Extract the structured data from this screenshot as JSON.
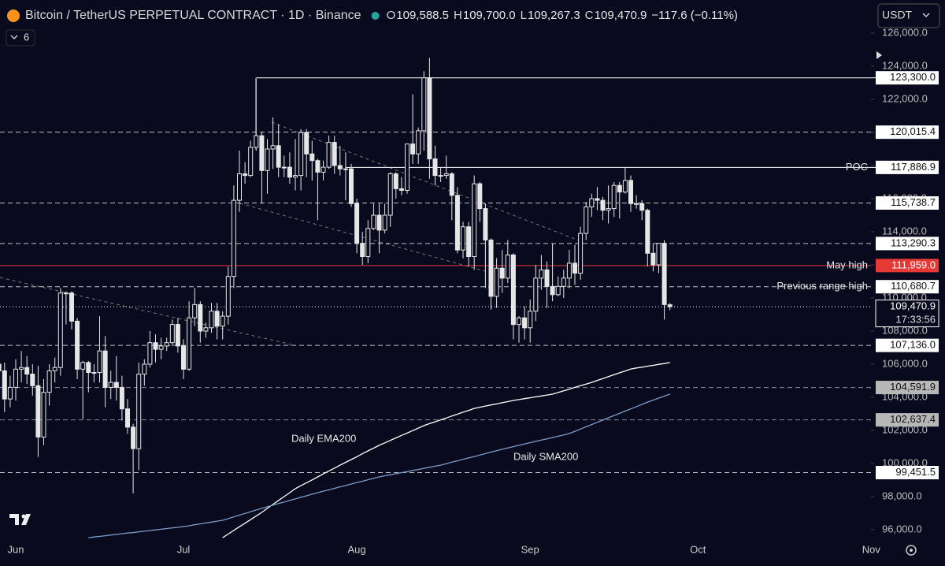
{
  "header": {
    "title": "Bitcoin / TetherUS PERPETUAL CONTRACT · 1D · Binance",
    "ohlc": [
      {
        "key": "O",
        "value": "109,588.5"
      },
      {
        "key": "H",
        "value": "109,700.0"
      },
      {
        "key": "L",
        "value": "109,267.3"
      },
      {
        "key": "C",
        "value": "109,470.9"
      }
    ],
    "change": "−117.6 (−0.11%)",
    "indicators": "6",
    "currency": "USDT"
  },
  "chart_data": {
    "type": "candlestick",
    "categories": [
      null,
      null,
      null,
      "Jun",
      null,
      null,
      null,
      null,
      null,
      null,
      null,
      null,
      null,
      null,
      null,
      null,
      null,
      null,
      null,
      null,
      null,
      null,
      null,
      null,
      null,
      null,
      null,
      null,
      null,
      null,
      null,
      null,
      null,
      "Jul",
      null,
      null,
      null,
      null,
      null,
      null,
      null,
      null,
      null,
      null,
      null,
      null,
      null,
      null,
      null,
      null,
      null,
      null,
      null,
      null,
      null,
      null,
      null,
      null,
      null,
      null,
      null,
      null,
      null,
      null,
      "Aug",
      null,
      null,
      null,
      null,
      null,
      null,
      null,
      null,
      null,
      null,
      null,
      null,
      null,
      null,
      null,
      null,
      null,
      null,
      null,
      null,
      null,
      null,
      null,
      null,
      null,
      null,
      null,
      null,
      null,
      null,
      "Sep",
      null,
      null,
      null,
      null,
      null,
      null,
      null,
      null,
      null,
      null,
      null,
      null,
      null,
      null,
      null,
      null,
      null,
      null,
      null,
      null,
      null,
      null,
      null,
      null,
      null,
      null,
      null,
      null,
      null,
      "Oct",
      null,
      null,
      null,
      null,
      null,
      null,
      null,
      null,
      null,
      null,
      null,
      null,
      null,
      null,
      null,
      null,
      null,
      null,
      null,
      null,
      null,
      null,
      null,
      null,
      null,
      null,
      null,
      null,
      null,
      null,
      "Nov"
    ],
    "open": [
      106000,
      105600,
      103900,
      104600,
      105700,
      105800,
      105400,
      104700,
      101600,
      104300,
      105600,
      105800,
      110300,
      110300,
      108600,
      105700,
      106100,
      105500,
      105500,
      106800,
      104600,
      104900,
      104600,
      103300,
      102200,
      100900,
      105400,
      106000,
      107300,
      106900,
      107100,
      107300,
      108400,
      107100,
      105700,
      108800,
      109600,
      108000,
      108200,
      109200,
      108300,
      108900,
      111300,
      115900,
      117500,
      117400,
      119100,
      119800,
      117700,
      119000,
      119200,
      117900,
      117900,
      117300,
      117400,
      120000,
      118700,
      118300,
      117600,
      117900,
      119400,
      118000,
      117800,
      117800,
      115700,
      113300,
      112500,
      114200,
      115000,
      114100,
      115000,
      117500,
      116600,
      116500,
      119300,
      118700,
      120100,
      123300,
      118400,
      117400,
      117400,
      117500,
      116200,
      112900,
      114300,
      112500,
      116900,
      115400,
      113500,
      110100,
      111800,
      111200,
      112600,
      108400,
      108800,
      108200,
      109200,
      111200,
      111700,
      110700,
      110200,
      110700,
      111200,
      112100,
      111500,
      113900,
      115500,
      116000,
      115900,
      115300,
      115400,
      116800,
      116400,
      117100,
      115700,
      115700,
      115300,
      112700,
      112000,
      113300,
      109588.5,
      null,
      null,
      null,
      null,
      null,
      null,
      null,
      null,
      null,
      null,
      null,
      null,
      null,
      null,
      null,
      null,
      null,
      null,
      null,
      null,
      null,
      null,
      null,
      null,
      null,
      null,
      null,
      null,
      null,
      null,
      null,
      null,
      null,
      null,
      null,
      null
    ],
    "high": [
      106800,
      106100,
      105300,
      106300,
      106800,
      106500,
      106000,
      105900,
      105100,
      106000,
      106400,
      110600,
      110400,
      110400,
      108800,
      106200,
      106200,
      106000,
      108900,
      107700,
      105600,
      106500,
      105300,
      103900,
      102400,
      106100,
      106300,
      108000,
      107800,
      107600,
      107600,
      108700,
      108800,
      107500,
      109800,
      110600,
      109800,
      108500,
      109700,
      109700,
      109200,
      111900,
      116800,
      118900,
      118200,
      119500,
      123200,
      120000,
      119600,
      120900,
      120500,
      118600,
      118800,
      119600,
      120200,
      120200,
      119500,
      118400,
      118300,
      119800,
      119800,
      119200,
      118800,
      118100,
      116000,
      114000,
      114700,
      115700,
      115700,
      115700,
      117600,
      117600,
      117300,
      119300,
      122300,
      120300,
      123700,
      124500,
      119200,
      117900,
      118600,
      117600,
      116700,
      114600,
      114600,
      117400,
      117000,
      115700,
      113600,
      112400,
      112900,
      113500,
      112700,
      108900,
      109500,
      109900,
      112000,
      112600,
      112200,
      113300,
      111300,
      111700,
      112900,
      113200,
      114300,
      115800,
      116300,
      116700,
      116100,
      116800,
      117000,
      117000,
      117900,
      117400,
      116200,
      115900,
      115400,
      113300,
      113300,
      113500,
      109700,
      null,
      null,
      null,
      null,
      null,
      null,
      null,
      null,
      null,
      null,
      null,
      null,
      null,
      null,
      null,
      null,
      null,
      null,
      null,
      null,
      null,
      null,
      null,
      null,
      null,
      null,
      null,
      null,
      null,
      null,
      null,
      null,
      null,
      null,
      null,
      null
    ],
    "low": [
      104900,
      103100,
      103400,
      103800,
      104900,
      104800,
      104100,
      100400,
      101100,
      103500,
      104900,
      105300,
      108400,
      108100,
      105100,
      102700,
      104300,
      104900,
      104900,
      103400,
      103900,
      103800,
      102600,
      101800,
      98200,
      99600,
      104700,
      105800,
      106100,
      106300,
      106800,
      107100,
      106700,
      105100,
      105600,
      108300,
      107300,
      107600,
      107900,
      107500,
      107500,
      108400,
      110600,
      115200,
      116900,
      117300,
      118900,
      115700,
      116300,
      117800,
      117300,
      117300,
      116900,
      116500,
      116500,
      117300,
      117100,
      114700,
      117100,
      117800,
      117500,
      117400,
      115900,
      115500,
      112700,
      112000,
      112100,
      114100,
      112700,
      113900,
      114300,
      116000,
      116200,
      116300,
      118100,
      118100,
      118900,
      117200,
      116800,
      117000,
      117200,
      114700,
      112700,
      112400,
      111900,
      111700,
      114600,
      110600,
      109300,
      109400,
      110300,
      110900,
      107500,
      107300,
      107500,
      107300,
      108600,
      110500,
      109400,
      109800,
      110100,
      110000,
      110600,
      110800,
      111100,
      113500,
      114900,
      115300,
      114700,
      114500,
      114900,
      114800,
      116300,
      115200,
      115400,
      114700,
      111900,
      111600,
      111500,
      108700,
      109267.3,
      null,
      null,
      null,
      null,
      null,
      null,
      null,
      null,
      null,
      null,
      null,
      null,
      null,
      null,
      null,
      null,
      null,
      null,
      null,
      null,
      null,
      null,
      null,
      null,
      null,
      null,
      null,
      null,
      null,
      null,
      null,
      null,
      null,
      null,
      null,
      null
    ],
    "close": [
      105600,
      103900,
      104600,
      105700,
      105800,
      105400,
      104700,
      101600,
      104300,
      105600,
      105800,
      110300,
      110300,
      108600,
      105700,
      106100,
      105500,
      105500,
      106800,
      104600,
      104900,
      104600,
      103300,
      102200,
      100900,
      105400,
      106000,
      107300,
      106900,
      107100,
      107300,
      108400,
      107100,
      105700,
      108800,
      109600,
      108000,
      108200,
      109200,
      108300,
      108900,
      111300,
      115900,
      117500,
      117400,
      119100,
      119800,
      117700,
      119000,
      119200,
      117900,
      117900,
      117300,
      117400,
      120000,
      118700,
      118300,
      117600,
      117900,
      119400,
      118000,
      117800,
      117800,
      115700,
      113300,
      112500,
      114200,
      115000,
      114100,
      115000,
      117500,
      116600,
      116500,
      119300,
      118700,
      120100,
      123300,
      118400,
      117400,
      117400,
      117500,
      116200,
      112900,
      114300,
      112500,
      116900,
      115400,
      113500,
      110100,
      111800,
      111200,
      112600,
      108400,
      108800,
      108200,
      109200,
      111200,
      111700,
      110700,
      110200,
      110700,
      111200,
      112100,
      111500,
      113900,
      115500,
      116000,
      115900,
      115300,
      115400,
      116800,
      116400,
      117100,
      115700,
      115700,
      115300,
      112700,
      112000,
      113300,
      109600,
      109470.9,
      null,
      null,
      null,
      null,
      null,
      null,
      null,
      null,
      null,
      null,
      null,
      null,
      null,
      null,
      null,
      null,
      null,
      null,
      null,
      null,
      null,
      null,
      null,
      null,
      null,
      null,
      null,
      null,
      null,
      null,
      null,
      null,
      null,
      null,
      null,
      null
    ],
    "series": [
      {
        "name": "Daily EMA200",
        "color": "#ffffff",
        "values": [
          null,
          null,
          null,
          null,
          null,
          null,
          null,
          null,
          null,
          null,
          null,
          null,
          null,
          null,
          null,
          null,
          null,
          null,
          null,
          null,
          null,
          null,
          null,
          null,
          null,
          null,
          null,
          null,
          null,
          null,
          null,
          null,
          null,
          null,
          null,
          null,
          null,
          null,
          null,
          null,
          95520,
          95740,
          95960,
          96180,
          96390,
          96610,
          96830,
          97050,
          97290,
          97530,
          97770,
          98000,
          98240,
          98480,
          98660,
          98840,
          99010,
          99190,
          99370,
          99550,
          99720,
          99900,
          100070,
          100240,
          100410,
          100590,
          100760,
          100930,
          101100,
          101250,
          101400,
          101550,
          101700,
          101840,
          101990,
          102140,
          102290,
          102410,
          102520,
          102640,
          102750,
          102870,
          102980,
          103100,
          103210,
          103330,
          103400,
          103470,
          103540,
          103600,
          103670,
          103740,
          103810,
          103860,
          103920,
          103970,
          104030,
          104080,
          104140,
          104190,
          104290,
          104390,
          104490,
          104600,
          104700,
          104800,
          104900,
          105020,
          105130,
          105250,
          105360,
          105480,
          105590,
          105710,
          105770,
          105820,
          105880,
          105930,
          105990,
          106040,
          106100,
          null,
          null,
          null,
          null,
          null,
          null,
          null,
          null,
          null,
          null,
          null,
          null,
          null,
          null,
          null,
          null,
          null,
          null,
          null,
          null,
          null,
          null,
          null,
          null,
          null,
          null,
          null,
          null,
          null,
          null,
          null,
          null,
          null,
          null,
          null,
          null
        ]
      },
      {
        "name": "Daily SMA200",
        "color": "#7a9cc6",
        "values": [
          null,
          null,
          null,
          null,
          null,
          null,
          null,
          null,
          null,
          null,
          null,
          null,
          null,
          null,
          null,
          null,
          95520,
          95560,
          95600,
          95640,
          95680,
          95720,
          95760,
          95800,
          95830,
          95870,
          95910,
          95950,
          95990,
          96030,
          96070,
          96110,
          96150,
          96190,
          96240,
          96300,
          96350,
          96410,
          96460,
          96520,
          96570,
          96670,
          96780,
          96880,
          96980,
          97090,
          97190,
          97290,
          97390,
          97480,
          97580,
          97670,
          97770,
          97860,
          97960,
          98050,
          98150,
          98240,
          98330,
          98410,
          98500,
          98590,
          98670,
          98760,
          98850,
          98930,
          99020,
          99110,
          99190,
          99260,
          99320,
          99380,
          99450,
          99510,
          99580,
          99640,
          99710,
          99770,
          99840,
          99900,
          99990,
          100080,
          100160,
          100250,
          100340,
          100420,
          100510,
          100600,
          100690,
          100770,
          100860,
          100940,
          101020,
          101100,
          101180,
          101260,
          101340,
          101420,
          101490,
          101570,
          101650,
          101730,
          101810,
          101950,
          102080,
          102220,
          102350,
          102490,
          102620,
          102760,
          102900,
          103030,
          103170,
          103300,
          103440,
          103570,
          103710,
          103830,
          103950,
          104070,
          104190,
          null,
          null,
          null,
          null,
          null,
          null,
          null,
          null,
          null,
          null,
          null,
          null,
          null,
          null,
          null,
          null,
          null,
          null,
          null,
          null,
          null,
          null,
          null,
          null,
          null,
          null,
          null,
          null,
          null,
          null,
          null,
          null,
          null,
          null,
          null,
          null
        ]
      }
    ],
    "levels": [
      {
        "value": 123300,
        "label": "123,300.0",
        "line": "solid",
        "color": "#ffffff"
      },
      {
        "value": 120015.4,
        "label": "120,015.4",
        "line": "dashed",
        "color": "#ffffff"
      },
      {
        "value": 117886.9,
        "label": "117,886.9",
        "name": "POC",
        "line": "solid",
        "color": "#ffffff"
      },
      {
        "value": 115738.7,
        "label": "115,738.7",
        "line": "dashed",
        "color": "#ffffff"
      },
      {
        "value": 113290.3,
        "label": "113,290.3",
        "line": "dashed",
        "color": "#ffffff"
      },
      {
        "value": 111959,
        "label": "111,959.0",
        "name": "May high",
        "line": "solid",
        "color": "#e53935"
      },
      {
        "value": 110680.7,
        "label": "110,680.7",
        "name": "Previous range high",
        "line": "dashed",
        "color": "#ffffff"
      },
      {
        "value": 109470.9,
        "label": "109,470.9",
        "countdown": "17:33:56",
        "line": "dotted",
        "color": "#ffffff"
      },
      {
        "value": 107136,
        "label": "107,136.0",
        "line": "dashed",
        "color": "#ffffff"
      },
      {
        "value": 104591.9,
        "label": "104,591.9",
        "line": "dashed",
        "color": "#b8b8b8"
      },
      {
        "value": 102637.4,
        "label": "102,637.4",
        "line": "dashed",
        "color": "#b8b8b8"
      },
      {
        "value": 99451.5,
        "label": "99,451.5",
        "line": "dashed",
        "color": "#ffffff"
      }
    ],
    "ylim": [
      95000,
      128000
    ],
    "yticks": [
      {
        "value": 96000,
        "label": "96,000.0"
      },
      {
        "value": 98000,
        "label": "98,000.0"
      },
      {
        "value": 100000,
        "label": "100,000.0"
      },
      {
        "value": 102000,
        "label": "102,000.0"
      },
      {
        "value": 104000,
        "label": "104,000.0"
      },
      {
        "value": 106000,
        "label": "106,000.0"
      },
      {
        "value": 108000,
        "label": "108,000.0"
      },
      {
        "value": 110000,
        "label": "110,000.0"
      },
      {
        "value": 112000,
        "label": "112,000.0"
      },
      {
        "value": 114000,
        "label": "114,000.0"
      },
      {
        "value": 116000,
        "label": "116,000.0"
      },
      {
        "value": 118000,
        "label": "118,000.0"
      },
      {
        "value": 120000,
        "label": "120,000.0"
      },
      {
        "value": 122000,
        "label": "122,000.0"
      },
      {
        "value": 124000,
        "label": "124,000.0"
      },
      {
        "value": 126000,
        "label": "126,000.0"
      }
    ],
    "grid": false
  }
}
